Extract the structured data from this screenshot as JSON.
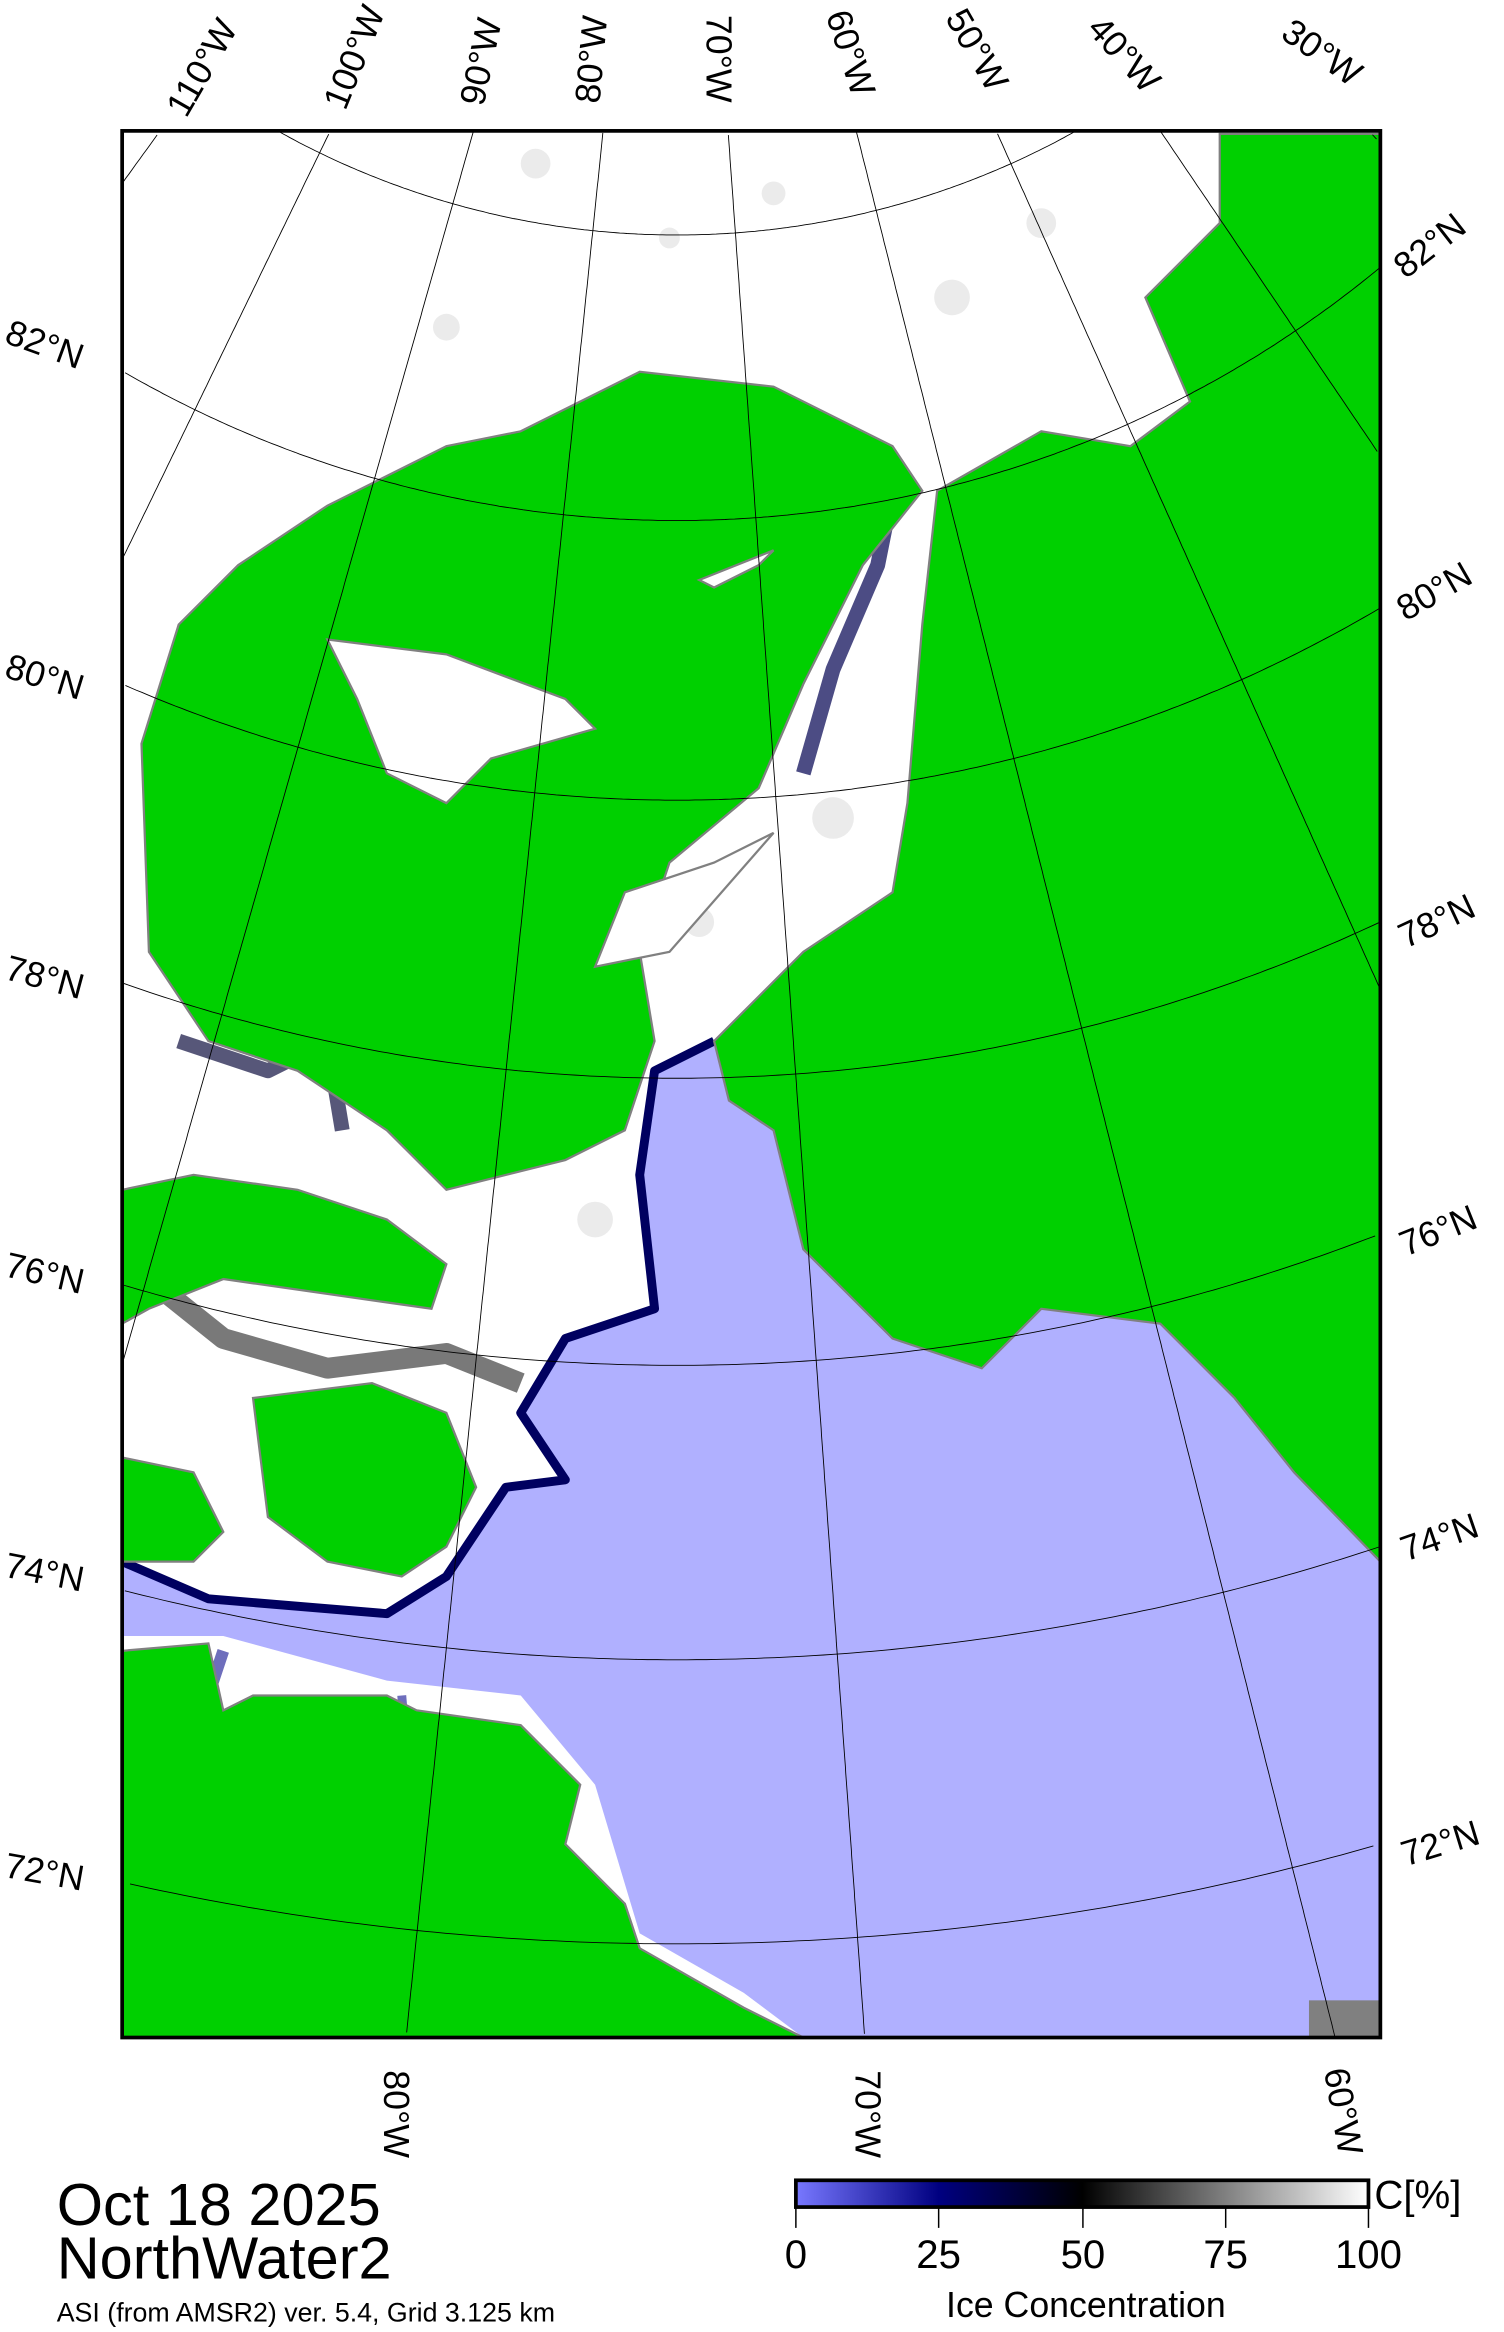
{
  "map": {
    "date": "Oct 18 2025",
    "region": "NorthWater2",
    "source": "ASI (from AMSR2) ver. 5.4,  Grid 3.125 km",
    "colors": {
      "land": "#00d000",
      "water": "#b0b0ff",
      "ice": "#ffffff",
      "coast": "#808080"
    },
    "top_lon_labels": [
      "110°W",
      "100°W",
      "90°W",
      "80°W",
      "70°W",
      "60°W",
      "50°W",
      "40°W",
      "30°W"
    ],
    "bottom_lon_labels": [
      "80°W",
      "70°W",
      "60°W"
    ],
    "left_lat_labels": [
      "82°N",
      "80°N",
      "78°N",
      "76°N",
      "74°N",
      "72°N"
    ],
    "right_lat_labels": [
      "82°N",
      "80°N",
      "78°N",
      "76°N",
      "74°N",
      "72°N"
    ]
  },
  "colorbar": {
    "unit": "C[%]",
    "ticks": [
      "0",
      "25",
      "50",
      "75",
      "100"
    ],
    "title": "Ice Concentration",
    "range": [
      0,
      100
    ],
    "stops": [
      "#7878ff",
      "#000080",
      "#000000",
      "#808080",
      "#ffffff"
    ]
  }
}
